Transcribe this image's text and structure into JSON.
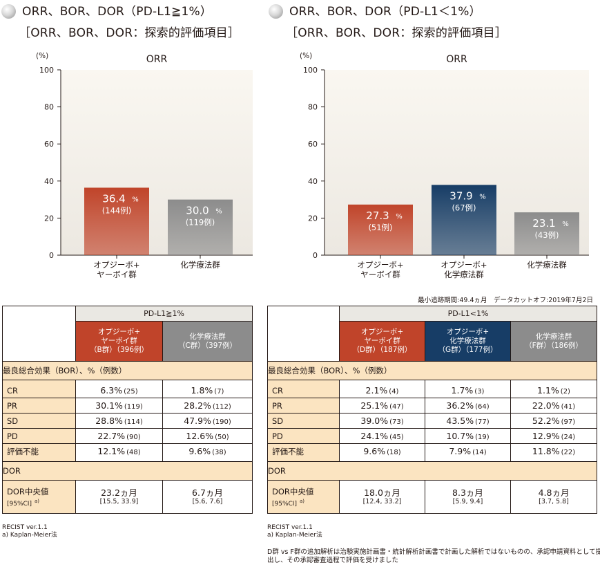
{
  "left": {
    "heading": {
      "line1": "ORR、BOR、DOR（PD-L1≧1%）",
      "line2": "［ORR、BOR、DOR：探索的評価項目］"
    },
    "table": {
      "pd_header": "PD-L1≧1%",
      "arms": [
        {
          "line1": "オプジーボ+",
          "line2": "ヤーボイ群",
          "line3": "（B群）（396例）",
          "color": "#c0442a"
        },
        {
          "line1": "化学療法群",
          "line2": "（C群）（397例）",
          "line3": "",
          "color": "#8c8c8c"
        }
      ],
      "bor_title": "最良総合効果（BOR）、%（例数）",
      "rows": [
        {
          "label": "CR",
          "values": [
            {
              "pct": "6.3%",
              "n": "(25)"
            },
            {
              "pct": "1.8%",
              "n": "(7)"
            }
          ]
        },
        {
          "label": "PR",
          "values": [
            {
              "pct": "30.1%",
              "n": "(119)"
            },
            {
              "pct": "28.2%",
              "n": "(112)"
            }
          ]
        },
        {
          "label": "SD",
          "values": [
            {
              "pct": "28.8%",
              "n": "(114)"
            },
            {
              "pct": "47.9%",
              "n": "(190)"
            }
          ]
        },
        {
          "label": "PD",
          "values": [
            {
              "pct": "22.7%",
              "n": "(90)"
            },
            {
              "pct": "12.6%",
              "n": "(50)"
            }
          ]
        },
        {
          "label": "評価不能",
          "values": [
            {
              "pct": "12.1%",
              "n": "(48)"
            },
            {
              "pct": "9.6%",
              "n": "(38)"
            }
          ]
        }
      ],
      "dor_title": "DOR",
      "dor_label": "DOR中央値",
      "dor_ci_label": "[95%CI]",
      "dor_sup": "a)",
      "dor_values": [
        {
          "median": "23.2ヵ月",
          "ci": "[15.5, 33.9]"
        },
        {
          "median": "6.7ヵ月",
          "ci": "[5.6, 7.6]"
        }
      ]
    },
    "footnotes": [
      "RECIST ver.1.1",
      "a) Kaplan-Meier法"
    ]
  },
  "right": {
    "heading": {
      "line1": "ORR、BOR、DOR（PD-L1＜1%）",
      "line2": "［ORR、BOR、DOR：探索的評価項目］"
    },
    "followup_note": "最小追跡期間:49.4ヵ月　データカットオフ:2019年7月2日",
    "table": {
      "pd_header": "PD-L1<1%",
      "arms": [
        {
          "line1": "オプジーボ+",
          "line2": "ヤーボイ群",
          "line3": "（D群）（187例）",
          "color": "#c0442a"
        },
        {
          "line1": "オプジーボ+",
          "line2": "化学療法群",
          "line3": "（G群）（177例）",
          "color": "#173d66"
        },
        {
          "line1": "化学療法群",
          "line2": "（F群）（186例）",
          "line3": "",
          "color": "#8c8c8c"
        }
      ],
      "bor_title": "最良総合効果（BOR）、%（例数）",
      "rows": [
        {
          "label": "CR",
          "values": [
            {
              "pct": "2.1%",
              "n": "(4)"
            },
            {
              "pct": "1.7%",
              "n": "(3)"
            },
            {
              "pct": "1.1%",
              "n": "(2)"
            }
          ]
        },
        {
          "label": "PR",
          "values": [
            {
              "pct": "25.1%",
              "n": "(47)"
            },
            {
              "pct": "36.2%",
              "n": "(64)"
            },
            {
              "pct": "22.0%",
              "n": "(41)"
            }
          ]
        },
        {
          "label": "SD",
          "values": [
            {
              "pct": "39.0%",
              "n": "(73)"
            },
            {
              "pct": "43.5%",
              "n": "(77)"
            },
            {
              "pct": "52.2%",
              "n": "(97)"
            }
          ]
        },
        {
          "label": "PD",
          "values": [
            {
              "pct": "24.1%",
              "n": "(45)"
            },
            {
              "pct": "10.7%",
              "n": "(19)"
            },
            {
              "pct": "12.9%",
              "n": "(24)"
            }
          ]
        },
        {
          "label": "評価不能",
          "values": [
            {
              "pct": "9.6%",
              "n": "(18)"
            },
            {
              "pct": "7.9%",
              "n": "(14)"
            },
            {
              "pct": "11.8%",
              "n": "(22)"
            }
          ]
        }
      ],
      "dor_title": "DOR",
      "dor_label": "DOR中央値",
      "dor_ci_label": "[95%CI]",
      "dor_sup": "a)",
      "dor_values": [
        {
          "median": "18.0ヵ月",
          "ci": "[12.4, 33.2]"
        },
        {
          "median": "8.3ヵ月",
          "ci": "[5.9, 9.4]"
        },
        {
          "median": "4.8ヵ月",
          "ci": "[3.7, 5.8]"
        }
      ]
    },
    "footnotes": [
      "RECIST ver.1.1",
      "a) Kaplan-Meier法"
    ],
    "analysis_note": [
      "D群 vs F群の追加解析は治験実施計画書・統計解析計画書で計画した解析ではないものの、承認申請資料として提",
      "出し、その承認審査過程で評価を受けました"
    ]
  },
  "chart_data": [
    {
      "type": "bar",
      "title": "ORR",
      "ylabel": "(%)",
      "ylim": [
        0,
        100
      ],
      "yticks": [
        0,
        20,
        40,
        60,
        80,
        100
      ],
      "categories": [
        [
          "オプジーボ+",
          "ヤーボイ群"
        ],
        [
          "化学療法群"
        ]
      ],
      "values": [
        36.4,
        30.0
      ],
      "value_labels": [
        "36.4",
        "30.0"
      ],
      "unit_label": "%",
      "counts": [
        "(144例)",
        "(119例)"
      ],
      "colors": [
        "#c0442a",
        "#8c8c8c"
      ],
      "grid": false
    },
    {
      "type": "bar",
      "title": "ORR",
      "ylabel": "(%)",
      "ylim": [
        0,
        100
      ],
      "yticks": [
        0,
        20,
        40,
        60,
        80,
        100
      ],
      "categories": [
        [
          "オプジーボ+",
          "ヤーボイ群"
        ],
        [
          "オプジーボ+",
          "化学療法群"
        ],
        [
          "化学療法群"
        ]
      ],
      "values": [
        27.3,
        37.9,
        23.1
      ],
      "value_labels": [
        "27.3",
        "37.9",
        "23.1"
      ],
      "unit_label": "%",
      "counts": [
        "(51例)",
        "(67例)",
        "(43例)"
      ],
      "colors": [
        "#c0442a",
        "#173d66",
        "#8c8c8c"
      ],
      "grid": false
    }
  ]
}
